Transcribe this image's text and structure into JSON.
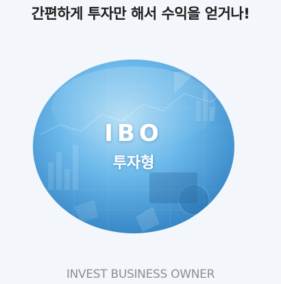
{
  "heading": "간편하게 투자만 해서 수익을 얻거나!",
  "product": {
    "title": "IBO",
    "subtitle": "투자형"
  },
  "caption": "INVEST BUSINESS OWNER",
  "colors": {
    "background": "#f3f6fa",
    "heading": "#1c1c1c",
    "circle_light": "#a9d8f3",
    "circle_mid": "#56aee6",
    "circle_dark": "#2d7fc1",
    "caption": "#8a8d92"
  }
}
